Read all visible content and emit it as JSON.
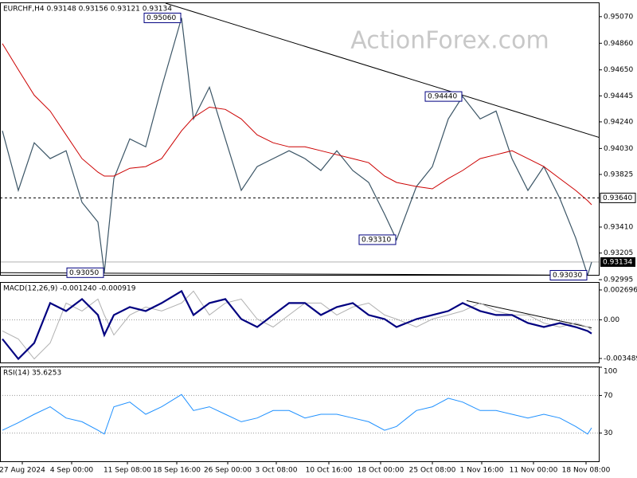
{
  "chart_data": [
    {
      "type": "line",
      "title": "EURCHF,H4  0.93148 0.93156 0.93121 0.93134",
      "watermark": "ActionForex.com",
      "xlim": [
        -0.3,
        74.9
      ],
      "xticks": [
        {
          "value": 2.5,
          "label": "27 Aug 2024"
        },
        {
          "value": 8.7,
          "label": "4 Sep 00:00"
        },
        {
          "value": 15.7,
          "label": "11 Sep 08:00"
        },
        {
          "value": 21.9,
          "label": "18 Sep 16:00"
        },
        {
          "value": 28.3,
          "label": "26 Sep 00:00"
        },
        {
          "value": 34.4,
          "label": "3 Oct 08:00"
        },
        {
          "value": 41,
          "label": "10 Oct 16:00"
        },
        {
          "value": 47.5,
          "label": "18 Oct 00:00"
        },
        {
          "value": 54,
          "label": "25 Oct 08:00"
        },
        {
          "value": 60.2,
          "label": "1 Nov 16:00"
        },
        {
          "value": 66.7,
          "label": "11 Nov 00:00"
        },
        {
          "value": 73.3,
          "label": "18 Nov 08:00"
        }
      ],
      "ylim": [
        0.93033,
        0.95176
      ],
      "yticks": [
        {
          "value": 0.9507,
          "label": "0.95070"
        },
        {
          "value": 0.9486,
          "label": "0.94860"
        },
        {
          "value": 0.9465,
          "label": "0.94650"
        },
        {
          "value": 0.94445,
          "label": "0.94445"
        },
        {
          "value": 0.9424,
          "label": "0.94240"
        },
        {
          "value": 0.9403,
          "label": "0.94030"
        },
        {
          "value": 0.93825,
          "label": "0.93825"
        },
        {
          "value": 0.9341,
          "label": "0.93410"
        },
        {
          "value": 0.93205,
          "label": "0.93205"
        },
        {
          "value": 0.92995,
          "label": "0.92995"
        }
      ],
      "x": [
        0,
        2,
        4,
        6,
        8,
        10,
        12,
        12.8,
        14,
        16,
        18,
        20,
        22.5,
        24,
        26,
        28,
        30,
        32,
        34,
        36,
        38,
        40,
        42,
        44,
        46,
        48,
        49.5,
        52,
        54,
        56,
        57.8,
        60,
        62,
        64,
        66,
        68,
        70,
        72,
        73.5,
        74
      ],
      "series": [
        {
          "color": "#3b5566",
          "width": 1.2,
          "values": [
            0.94169,
            0.93699,
            0.94075,
            0.9395,
            0.94012,
            0.93605,
            0.93449,
            0.9305,
            0.93793,
            0.94106,
            0.94043,
            0.94513,
            0.9506,
            0.94263,
            0.94513,
            0.94106,
            0.93699,
            0.93887,
            0.9395,
            0.94012,
            0.9395,
            0.93856,
            0.94012,
            0.93856,
            0.93762,
            0.93511,
            0.9331,
            0.9373,
            0.93887,
            0.94263,
            0.9444,
            0.94263,
            0.94325,
            0.9395,
            0.93699,
            0.93887,
            0.93637,
            0.93324,
            0.9303,
            0.93134
          ]
        },
        {
          "color": "#cc0000",
          "width": 1,
          "values": [
            0.94857,
            0.94651,
            0.9445,
            0.94325,
            0.94137,
            0.9395,
            0.93843,
            0.93812,
            0.93812,
            0.93874,
            0.93887,
            0.9395,
            0.94169,
            0.94275,
            0.94356,
            0.94338,
            0.94263,
            0.94137,
            0.94075,
            0.94043,
            0.94043,
            0.94012,
            0.93981,
            0.9395,
            0.93918,
            0.93812,
            0.93762,
            0.9373,
            0.93712,
            0.93793,
            0.93856,
            0.9395,
            0.93981,
            0.94012,
            0.9395,
            0.93887,
            0.93793,
            0.93699,
            0.93618,
            0.93586
          ]
        }
      ],
      "trendlines": [
        {
          "x": [
            20.5,
            75.2
          ],
          "values": [
            0.95176,
            0.94112
          ]
        },
        {
          "x": [
            -0.3,
            73.5
          ],
          "values": [
            0.9305,
            0.9303
          ]
        }
      ],
      "annotations": [
        {
          "text": "0.95060",
          "x": 22.5,
          "value": 0.9506
        },
        {
          "text": "0.94440",
          "x": 57.8,
          "value": 0.9444
        },
        {
          "text": "0.93310",
          "x": 49.5,
          "value": 0.9331
        },
        {
          "text": "0.93050",
          "x": 12.8,
          "value": 0.9305
        },
        {
          "text": "0.93030",
          "x": 73.5,
          "value": 0.9303
        }
      ],
      "levels": [
        {
          "value": 0.9364,
          "label": "0.93640",
          "style": "dashed"
        }
      ],
      "last_price": {
        "value": 0.93134,
        "label": "0.93134"
      }
    },
    {
      "type": "line",
      "title": "MACD(12,26,9) -0.001240 -0.000919",
      "xlim": [
        -0.3,
        74.9
      ],
      "ylim": [
        -0.00385,
        0.00334
      ],
      "yticks": [
        {
          "value": 0.002696,
          "label": "0.002696"
        },
        {
          "value": 0,
          "label": "0.00"
        },
        {
          "value": -0.003489,
          "label": "-0.003489"
        }
      ],
      "zero_line": true,
      "x": [
        0,
        2,
        4,
        6,
        8,
        10,
        12,
        12.8,
        14,
        16,
        18,
        20,
        22.5,
        24,
        26,
        28,
        30,
        32,
        34,
        36,
        38,
        40,
        42,
        44,
        46,
        48,
        49.5,
        52,
        54,
        56,
        57.8,
        60,
        62,
        64,
        66,
        68,
        70,
        72,
        73.5,
        74
      ],
      "series": [
        {
          "color": "#b0b0b0",
          "width": 1,
          "values": [
            -0.001,
            -0.001728,
            -0.003528,
            -0.002088,
            0.001512,
            0.000792,
            0.001872,
            0.000432,
            -0.001368,
            0.000432,
            0.001152,
            0.000792,
            0.001512,
            0.002592,
            0.000432,
            0.001512,
            0.001872,
            7.2e-05,
            -0.000648,
            0.000432,
            0.001512,
            0.001512,
            0.000432,
            0.001152,
            0.001512,
            0.000432,
            7.2e-05,
            -0.000648,
            7.2e-05,
            0.000432,
            0.000792,
            0.001512,
            0.000792,
            0.000432,
            0.000432,
            -0.000288,
            -0.000648,
            -0.000288,
            -0.000648,
            -0.000919
          ]
        },
        {
          "color": "#000080",
          "width": 2.2,
          "values": [
            -0.001728,
            -0.003528,
            -0.002088,
            0.001512,
            0.000792,
            0.001872,
            0.000432,
            -0.001368,
            0.000432,
            0.001152,
            0.000792,
            0.001512,
            0.002592,
            0.000432,
            0.001512,
            0.001872,
            7.2e-05,
            -0.000648,
            0.000432,
            0.001512,
            0.001512,
            0.000432,
            0.001152,
            0.001512,
            0.000432,
            7.2e-05,
            -0.000648,
            7.2e-05,
            0.000432,
            0.000792,
            0.001512,
            0.000792,
            0.000432,
            0.000432,
            -0.000288,
            -0.000648,
            -0.000288,
            -0.000648,
            -0.001008,
            -0.00124
          ]
        }
      ],
      "trendlines": [
        {
          "x": [
            58.3,
            74
          ],
          "values": [
            0.001728,
            -0.00072
          ]
        }
      ]
    },
    {
      "type": "line",
      "title": "RSI(14) 35.6253",
      "xlim": [
        -0.3,
        74.9
      ],
      "ylim": [
        0,
        100
      ],
      "yticks": [
        100,
        70,
        30
      ],
      "grid": true,
      "x": [
        0,
        2,
        4,
        6,
        8,
        10,
        12,
        12.8,
        14,
        16,
        18,
        20,
        22.5,
        24,
        26,
        28,
        30,
        32,
        34,
        36,
        38,
        40,
        42,
        44,
        46,
        48,
        49.5,
        52,
        54,
        56,
        57.8,
        60,
        62,
        64,
        66,
        68,
        70,
        72,
        73.5,
        74
      ],
      "series": [
        {
          "color": "#1e90ff",
          "width": 1,
          "values": [
            33,
            41,
            50,
            58,
            46,
            42,
            33,
            29,
            58,
            63,
            50,
            58,
            71,
            54,
            58,
            50,
            42,
            46,
            54,
            54,
            46,
            50,
            50,
            46,
            42,
            33,
            37,
            54,
            58,
            67,
            63,
            54,
            54,
            50,
            46,
            50,
            46,
            37,
            29,
            35.6253
          ]
        }
      ]
    }
  ]
}
